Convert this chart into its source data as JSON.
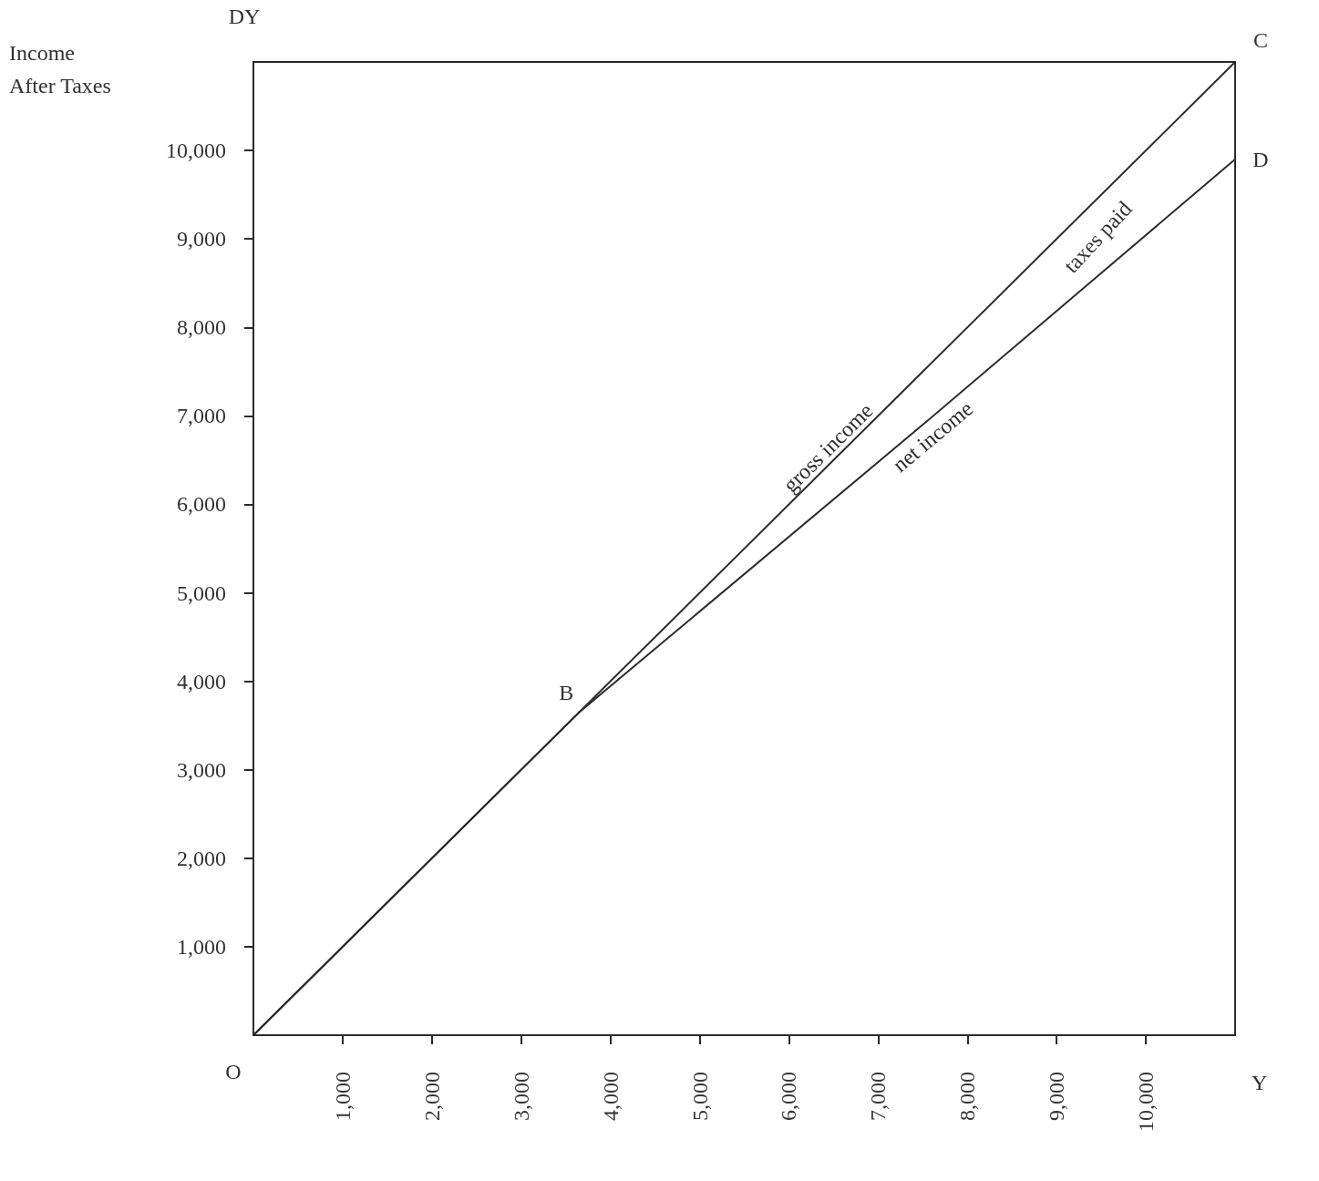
{
  "chart_data": {
    "type": "line",
    "ylabel": "Income After Taxes",
    "xlabel": "Y",
    "x": [
      0,
      3650,
      7500,
      11000
    ],
    "series": [
      {
        "name": "gross income",
        "color": "#2b2b2b",
        "values": [
          0,
          3650,
          7500,
          11000
        ]
      },
      {
        "name": "net income",
        "color": "#2b2b2b",
        "values": [
          0,
          3650,
          6900,
          9900
        ]
      }
    ],
    "xlim": [
      0,
      11000
    ],
    "ylim": [
      0,
      11000
    ],
    "xticks": [
      {
        "value": 1000,
        "label": "1,000"
      },
      {
        "value": 2000,
        "label": "2,000"
      },
      {
        "value": 3000,
        "label": "3,000"
      },
      {
        "value": 4000,
        "label": "4,000"
      },
      {
        "value": 5000,
        "label": "5,000"
      },
      {
        "value": 6000,
        "label": "6,000"
      },
      {
        "value": 7000,
        "label": "7,000"
      },
      {
        "value": 8000,
        "label": "8,000"
      },
      {
        "value": 9000,
        "label": "9,000"
      },
      {
        "value": 10000,
        "label": "10,000"
      }
    ],
    "yticks": [
      {
        "value": 1000,
        "label": "1,000"
      },
      {
        "value": 2000,
        "label": "2,000"
      },
      {
        "value": 3000,
        "label": "3,000"
      },
      {
        "value": 4000,
        "label": "4,000"
      },
      {
        "value": 5000,
        "label": "5,000"
      },
      {
        "value": 6000,
        "label": "6,000"
      },
      {
        "value": 7000,
        "label": "7,000"
      },
      {
        "value": 8000,
        "label": "8,000"
      },
      {
        "value": 9000,
        "label": "9,000"
      },
      {
        "value": 10000,
        "label": "10,000"
      }
    ],
    "annotations": [
      {
        "text": "O",
        "x": 0,
        "y": 0
      },
      {
        "text": "B",
        "x": 3650,
        "y": 3650
      },
      {
        "text": "C",
        "x": 11000,
        "y": 11000
      },
      {
        "text": "D",
        "x": 11000,
        "y": 9900
      },
      "DY",
      "taxes paid"
    ],
    "grid": false,
    "legend": false,
    "marker": "none",
    "line_style": "solid"
  }
}
